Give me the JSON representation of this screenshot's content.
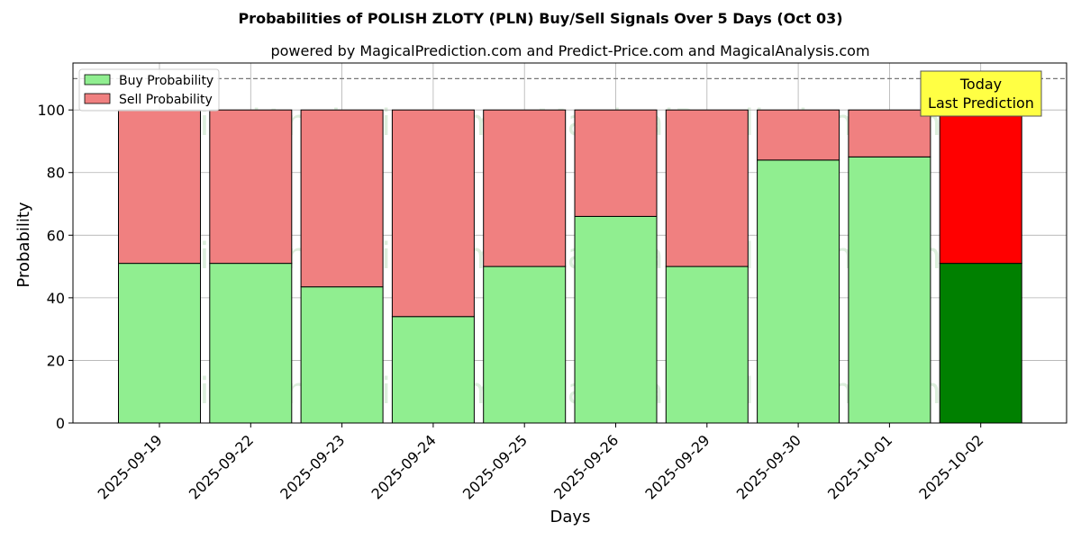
{
  "chart_data": {
    "type": "bar",
    "title": "Probabilities of POLISH ZLOTY (PLN) Buy/Sell Signals Over 5 Days (Oct 03)",
    "subtitle": "powered by MagicalPrediction.com and Predict-Price.com and MagicalAnalysis.com",
    "xlabel": "Days",
    "ylabel": "Probability",
    "ylim": [
      0,
      115
    ],
    "yticks": [
      0,
      20,
      40,
      60,
      80,
      100
    ],
    "categories": [
      "2025-09-19",
      "2025-09-22",
      "2025-09-23",
      "2025-09-24",
      "2025-09-25",
      "2025-09-26",
      "2025-09-29",
      "2025-09-30",
      "2025-10-01",
      "2025-10-02"
    ],
    "series": [
      {
        "name": "Buy Probability",
        "values": [
          51,
          51,
          43.5,
          34,
          50,
          66,
          50,
          84,
          85,
          51
        ],
        "color": "#90ee90",
        "last_color": "#008000"
      },
      {
        "name": "Sell Probability",
        "values": [
          49,
          49,
          56.5,
          66,
          50,
          34,
          50,
          16,
          15,
          49
        ],
        "color": "#f08080",
        "last_color": "#ff0000"
      }
    ],
    "reference_line": 110,
    "legend_position": "top-left",
    "grid": true,
    "annotation": {
      "line1": "Today",
      "line2": "Last Prediction",
      "color": "#ffff44"
    },
    "watermarks": [
      "MagicalAnalysis.com",
      "MagicalPrediction.com"
    ]
  }
}
